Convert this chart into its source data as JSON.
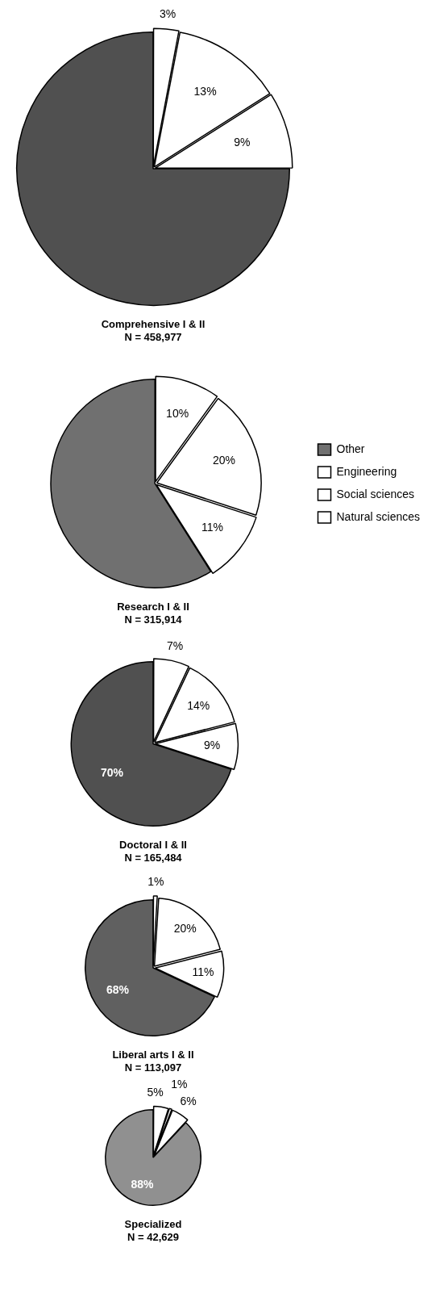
{
  "chart_data": [
    {
      "type": "pie",
      "title": "Comprehensive I & II",
      "subtitle": "N = 458,977",
      "categories": [
        null,
        null,
        null,
        null
      ],
      "values": [
        75,
        3,
        13,
        9
      ],
      "value_labels": [
        null,
        "3%",
        "13%",
        "9%"
      ],
      "colors": [
        "#505050",
        "#ffffff",
        "#ffffff",
        "#ffffff"
      ]
    },
    {
      "type": "pie",
      "title": "Research I & II",
      "subtitle": "N = 315,914",
      "categories": [
        "Other",
        "Engineering",
        "Social sciences",
        "Natural sciences"
      ],
      "values": [
        59,
        10,
        20,
        11
      ],
      "value_labels": [
        null,
        "10%",
        "20%",
        "11%"
      ],
      "colors": [
        "#707070",
        "#ffffff",
        "#ffffff",
        "#ffffff"
      ],
      "legend": "right"
    },
    {
      "type": "pie",
      "title": "Doctoral I & II",
      "subtitle": "N = 165,484",
      "categories": [
        null,
        null,
        null,
        null
      ],
      "values": [
        70,
        7,
        14,
        9
      ],
      "value_labels": [
        "70%",
        "7%",
        "14%",
        "9%"
      ],
      "colors": [
        "#505050",
        "#ffffff",
        "#ffffff",
        "#ffffff"
      ]
    },
    {
      "type": "pie",
      "title": "Liberal arts I & II",
      "subtitle": "N = 113,097",
      "categories": [
        null,
        null,
        null,
        null
      ],
      "values": [
        68,
        1,
        20,
        11
      ],
      "value_labels": [
        "68%",
        "1%",
        "20%",
        "11%"
      ],
      "colors": [
        "#606060",
        "#ffffff",
        "#ffffff",
        "#ffffff"
      ]
    },
    {
      "type": "pie",
      "title": "Specialized",
      "subtitle": "N = 42,629",
      "categories": [
        null,
        null,
        null,
        null
      ],
      "values": [
        88,
        5,
        1,
        6
      ],
      "value_labels": [
        "88%",
        "5%",
        "1%",
        "6%"
      ],
      "colors": [
        "#909090",
        "#ffffff",
        "#ffffff",
        "#ffffff"
      ]
    }
  ]
}
